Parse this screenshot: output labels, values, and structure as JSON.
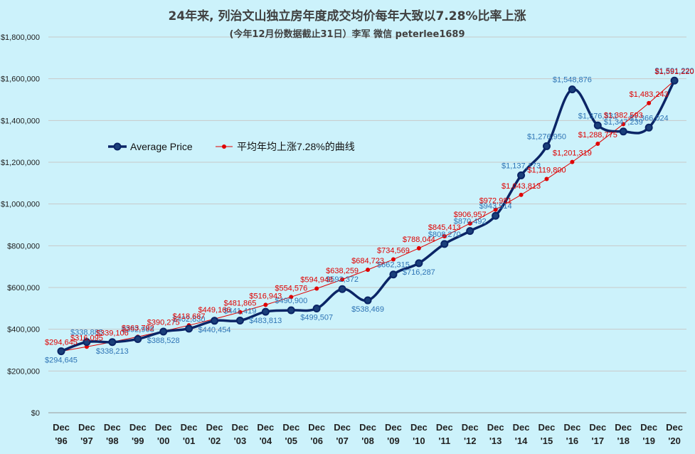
{
  "chart_data": {
    "type": "line",
    "title": "24年来, 列治文山独立房年度成交均价每年大致以7.28%比率上涨",
    "subtitle": "(今年12月份数据截止31日）李军 微信 peterlee1689",
    "categories": [
      "Dec '96",
      "Dec '97",
      "Dec '98",
      "Dec '99",
      "Dec '00",
      "Dec '01",
      "Dec '02",
      "Dec '03",
      "Dec '04",
      "Dec '05",
      "Dec '06",
      "Dec '07",
      "Dec '08",
      "Dec '09",
      "Dec '10",
      "Dec '11",
      "Dec '12",
      "Dec '13",
      "Dec '14",
      "Dec '15",
      "Dec '16",
      "Dec '17",
      "Dec '18",
      "Dec '19",
      "Dec '20"
    ],
    "x_top": [
      "Dec",
      "Dec",
      "Dec",
      "Dec",
      "Dec",
      "Dec",
      "Dec",
      "Dec",
      "Dec",
      "Dec",
      "Dec",
      "Dec",
      "Dec",
      "Dec",
      "Dec",
      "Dec",
      "Dec",
      "Dec",
      "Dec",
      "Dec",
      "Dec",
      "Dec",
      "Dec",
      "Dec",
      "Dec"
    ],
    "x_bottom": [
      "'96",
      "'97",
      "'98",
      "'99",
      "'00",
      "'01",
      "'02",
      "'03",
      "'04",
      "'05",
      "'06",
      "'07",
      "'08",
      "'09",
      "'10",
      "'11",
      "'12",
      "'13",
      "'14",
      "'15",
      "'16",
      "'17",
      "'18",
      "'19",
      "'20"
    ],
    "y_ticks": [
      "$0",
      "$200,000",
      "$400,000",
      "$600,000",
      "$800,000",
      "$1,000,000",
      "$1,200,000",
      "$1,400,000",
      "$1,600,000",
      "$1,800,000"
    ],
    "ylim": [
      0,
      1800000
    ],
    "grid": true,
    "legend_position": "left-middle",
    "series": [
      {
        "name": "Average Price",
        "color": "#0b2566",
        "values": [
          294645,
          338885,
          338213,
          352968,
          388528,
          402830,
          440454,
          441419,
          483813,
          490900,
          499507,
          592372,
          538469,
          662315,
          716287,
          808270,
          870492,
          943514,
          1137173,
          1276950,
          1548876,
          1376331,
          1347239,
          1366024,
          1591220
        ],
        "labels": [
          "$294,645",
          "$338,885",
          "$338,213",
          "$352,968",
          "$388,528",
          "$402,830",
          "$440,454",
          "$441,419",
          "$483,813",
          "$490,900",
          "$499,507",
          "$592,372",
          "$538,469",
          "$662,315",
          "$716,287",
          "$808,270",
          "$870,492",
          "$943,514",
          "$1,137,173",
          "$1,276,950",
          "$1,548,876",
          "$1,376,331",
          "$1,347,239",
          "$1,366,024",
          "$1,591,220"
        ]
      },
      {
        "name": "平均年均上涨7.28%的曲线",
        "color": "#e00000",
        "values": [
          294645,
          316095,
          339106,
          363792,
          390275,
          418687,
          449166,
          481865,
          516943,
          554576,
          594948,
          638259,
          684723,
          734569,
          788044,
          845413,
          906957,
          972981,
          1043813,
          1119800,
          1201319,
          1288775,
          1382593,
          1483243,
          1591220
        ],
        "labels": [
          "$294,645",
          "$316,095",
          "$339,106",
          "$363,792",
          "$390,275",
          "$418,687",
          "$449,166",
          "$481,865",
          "$516,943",
          "$554,576",
          "$594,948",
          "$638,259",
          "$684,723",
          "$734,569",
          "$788,044",
          "$845,413",
          "$906,957",
          "$972,981",
          "$1,043,813",
          "$1,119,800",
          "$1,201,319",
          "$1,288,775",
          "$1,382,593",
          "$1,483,243",
          "$1,591,220"
        ]
      }
    ]
  }
}
